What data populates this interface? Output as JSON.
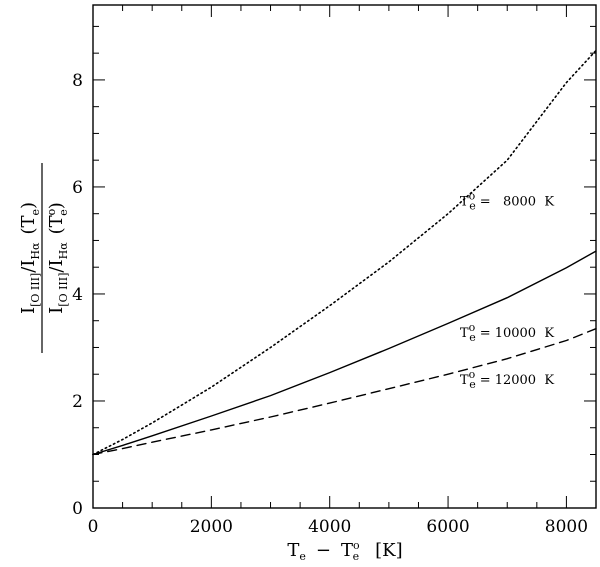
{
  "chart_data": {
    "type": "line",
    "title": "",
    "xlabel": "T_e − T_e° [K]",
    "ylabel": "I[O III]/IHα (Te) / I[O III]/IHα (Te°)",
    "xlim": [
      0,
      8500
    ],
    "ylim": [
      0,
      9.4
    ],
    "xticks": [
      0,
      2000,
      4000,
      6000,
      8000
    ],
    "yticks": [
      0,
      2,
      4,
      6,
      8
    ],
    "grid": false,
    "legend": "none",
    "series": [
      {
        "name": "Te° = 8000 K",
        "style": "dotted",
        "x": [
          0,
          500,
          1000,
          2000,
          3000,
          4000,
          5000,
          6000,
          7000,
          8000,
          8500
        ],
        "values": [
          1.0,
          1.28,
          1.59,
          2.26,
          3.0,
          3.78,
          4.6,
          5.5,
          6.5,
          7.95,
          8.55
        ]
      },
      {
        "name": "Te° = 10000 K",
        "style": "solid",
        "x": [
          0,
          500,
          1000,
          2000,
          3000,
          4000,
          5000,
          6000,
          7000,
          8000,
          8500
        ],
        "values": [
          1.0,
          1.17,
          1.35,
          1.72,
          2.1,
          2.53,
          2.98,
          3.45,
          3.93,
          4.49,
          4.8
        ]
      },
      {
        "name": "Te° = 12000 K",
        "style": "dashed",
        "x": [
          0,
          500,
          1000,
          2000,
          3000,
          4000,
          5000,
          6000,
          7000,
          8000,
          8500
        ],
        "values": [
          1.0,
          1.11,
          1.23,
          1.46,
          1.7,
          1.96,
          2.23,
          2.5,
          2.79,
          3.13,
          3.35
        ]
      }
    ],
    "annotations": [
      {
        "main": "T",
        "sub": "e",
        "sup": "o",
        "text": "=   8000  K",
        "x": 6200,
        "y": 5.65
      },
      {
        "main": "T",
        "sub": "e",
        "sup": "o",
        "text": "= 10000  K",
        "x": 6200,
        "y": 3.2
      },
      {
        "main": "T",
        "sub": "e",
        "sup": "o",
        "text": "= 12000  K",
        "x": 6200,
        "y": 2.32
      }
    ],
    "axis_label_parts": {
      "x": {
        "main1": "T",
        "sub1": "e",
        "dash": "−",
        "main2": "T",
        "sub2": "e",
        "sup2": "o",
        "unit": "[K]"
      },
      "y": {
        "num_I1": "I",
        "num_sub1": "[O III]",
        "num_slash": "/",
        "num_I2": "I",
        "num_sub2": "Hα",
        "num_arg": "(T",
        "num_arg_sub": "e",
        "num_close": ")",
        "den_I1": "I",
        "den_sub1": "[O III]",
        "den_slash": "/",
        "den_I2": "I",
        "den_sub2": "Hα",
        "den_arg": "(T",
        "den_arg_sup": "o",
        "den_arg_sub": "e",
        "den_close": ")"
      }
    }
  }
}
